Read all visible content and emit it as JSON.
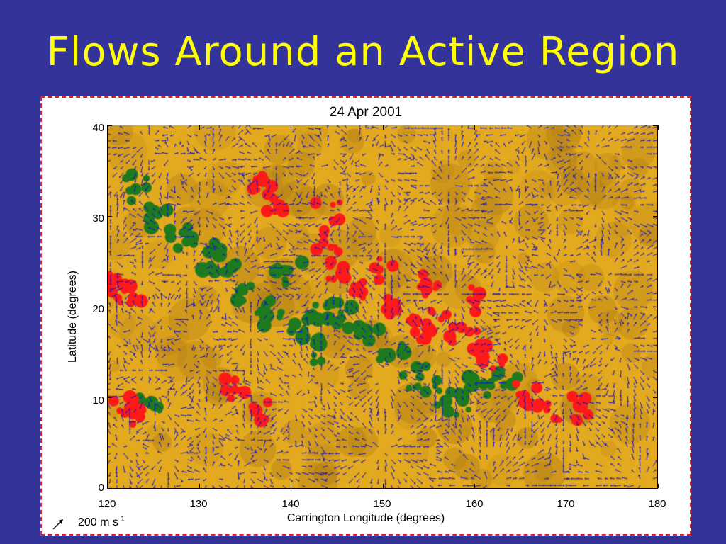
{
  "slide": {
    "title": "Flows Around an Active Region",
    "background_color": "#333399",
    "title_color": "#ffff00",
    "frame_border_color": "#dd1f2e"
  },
  "figure": {
    "title": "24 Apr 2001",
    "x_axis": {
      "label": "Carrington Longitude (degrees)",
      "range": [
        120,
        180
      ],
      "ticks": [
        "120",
        "130",
        "140",
        "150",
        "160",
        "170",
        "180"
      ]
    },
    "y_axis": {
      "label": "Latitude (degrees)",
      "range": [
        0,
        40
      ],
      "ticks": [
        "0",
        "10",
        "20",
        "30",
        "40"
      ]
    },
    "reference_vector": {
      "value": "200",
      "unit": "m s",
      "exponent": "-1"
    },
    "colors": {
      "background_field": "#e3a91f",
      "flow_vectors": "#1010d0",
      "positive_polarity": "#ff1a1a",
      "negative_polarity": "#1e7a1e"
    }
  }
}
